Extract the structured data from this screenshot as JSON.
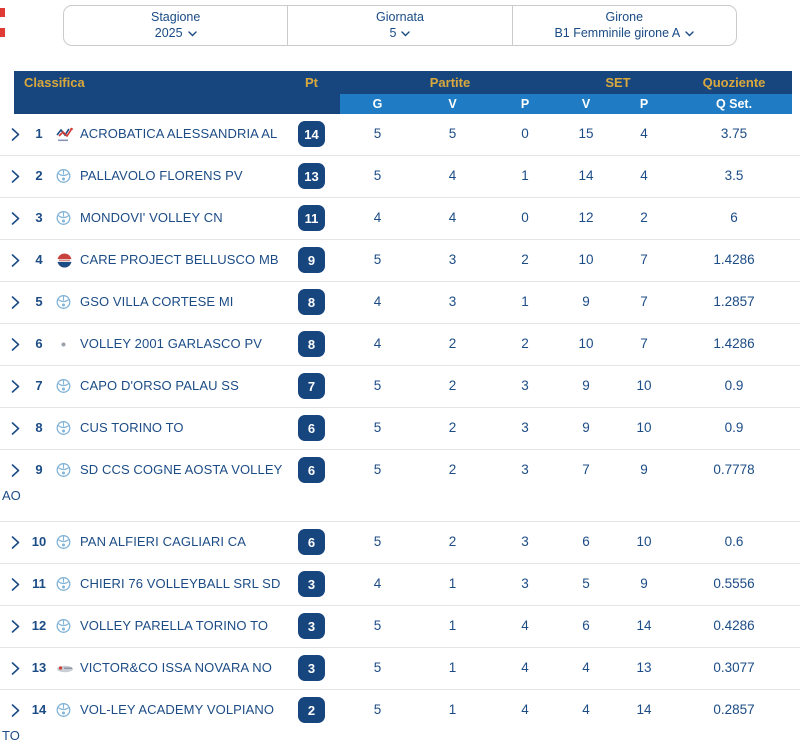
{
  "filters": [
    {
      "label": "Stagione",
      "value": "2025"
    },
    {
      "label": "Giornata",
      "value": "5"
    },
    {
      "label": "Girone",
      "value": "B1 Femminile girone A"
    }
  ],
  "table": {
    "header": {
      "classifica": "Classifica",
      "pt": "Pt",
      "partite": "Partite",
      "set": "SET",
      "quoziente": "Quoziente",
      "sub": {
        "g": "G",
        "v": "V",
        "p": "P",
        "set_v": "V",
        "set_p": "P",
        "q_set": "Q Set."
      }
    },
    "rows": [
      {
        "rank": "1",
        "team": "ACROBATICA ALESSANDRIA AL",
        "logo": "acrobatica",
        "pt": "14",
        "g": "5",
        "v": "5",
        "p": "0",
        "set_v": "15",
        "set_p": "4",
        "q": "3.75"
      },
      {
        "rank": "2",
        "team": "PALLAVOLO FLORENS PV",
        "logo": "generic",
        "pt": "13",
        "g": "5",
        "v": "4",
        "p": "1",
        "set_v": "14",
        "set_p": "4",
        "q": "3.5"
      },
      {
        "rank": "3",
        "team": "MONDOVI' VOLLEY CN",
        "logo": "generic",
        "pt": "11",
        "g": "4",
        "v": "4",
        "p": "0",
        "set_v": "12",
        "set_p": "2",
        "q": "6"
      },
      {
        "rank": "4",
        "team": "CARE PROJECT BELLUSCO MB",
        "logo": "bellusco",
        "pt": "9",
        "g": "5",
        "v": "3",
        "p": "2",
        "set_v": "10",
        "set_p": "7",
        "q": "1.4286"
      },
      {
        "rank": "5",
        "team": "GSO VILLA CORTESE MI",
        "logo": "generic",
        "pt": "8",
        "g": "4",
        "v": "3",
        "p": "1",
        "set_v": "9",
        "set_p": "7",
        "q": "1.2857"
      },
      {
        "rank": "6",
        "team": "VOLLEY 2001 GARLASCO PV",
        "logo": "dot",
        "pt": "8",
        "g": "4",
        "v": "2",
        "p": "2",
        "set_v": "10",
        "set_p": "7",
        "q": "1.4286"
      },
      {
        "rank": "7",
        "team": "CAPO D'ORSO PALAU SS",
        "logo": "generic",
        "pt": "7",
        "g": "5",
        "v": "2",
        "p": "3",
        "set_v": "9",
        "set_p": "10",
        "q": "0.9"
      },
      {
        "rank": "8",
        "team": "CUS TORINO TO",
        "logo": "generic",
        "pt": "6",
        "g": "5",
        "v": "2",
        "p": "3",
        "set_v": "9",
        "set_p": "10",
        "q": "0.9"
      },
      {
        "rank": "9",
        "team": "SD CCS COGNE AOSTA VOLLEY AO",
        "logo": "generic",
        "pt": "6",
        "g": "5",
        "v": "2",
        "p": "3",
        "set_v": "7",
        "set_p": "9",
        "q": "0.7778",
        "wrap_tail": "AO"
      },
      {
        "rank": "10",
        "team": "PAN ALFIERI CAGLIARI CA",
        "logo": "generic",
        "pt": "6",
        "g": "5",
        "v": "2",
        "p": "3",
        "set_v": "6",
        "set_p": "10",
        "q": "0.6"
      },
      {
        "rank": "11",
        "team": "CHIERI 76 VOLLEYBALL SRL SD",
        "logo": "generic",
        "pt": "3",
        "g": "4",
        "v": "1",
        "p": "3",
        "set_v": "5",
        "set_p": "9",
        "q": "0.5556"
      },
      {
        "rank": "12",
        "team": "VOLLEY PARELLA TORINO TO",
        "logo": "generic",
        "pt": "3",
        "g": "5",
        "v": "1",
        "p": "4",
        "set_v": "6",
        "set_p": "14",
        "q": "0.4286"
      },
      {
        "rank": "13",
        "team": "VICTOR&CO ISSA NOVARA NO",
        "logo": "novara",
        "pt": "3",
        "g": "5",
        "v": "1",
        "p": "4",
        "set_v": "4",
        "set_p": "13",
        "q": "0.3077"
      },
      {
        "rank": "14",
        "team": "VOL-LEY ACADEMY VOLPIANO TO",
        "logo": "generic",
        "pt": "2",
        "g": "5",
        "v": "1",
        "p": "4",
        "set_v": "4",
        "set_p": "14",
        "q": "0.2857",
        "wrap_tail": "TO"
      }
    ]
  },
  "colors": {
    "navy": "#17457E",
    "light_blue": "#1F7CC4",
    "gold": "#D9A83C",
    "row_text": "#1C4C86",
    "red_mark": "#E03A34"
  }
}
